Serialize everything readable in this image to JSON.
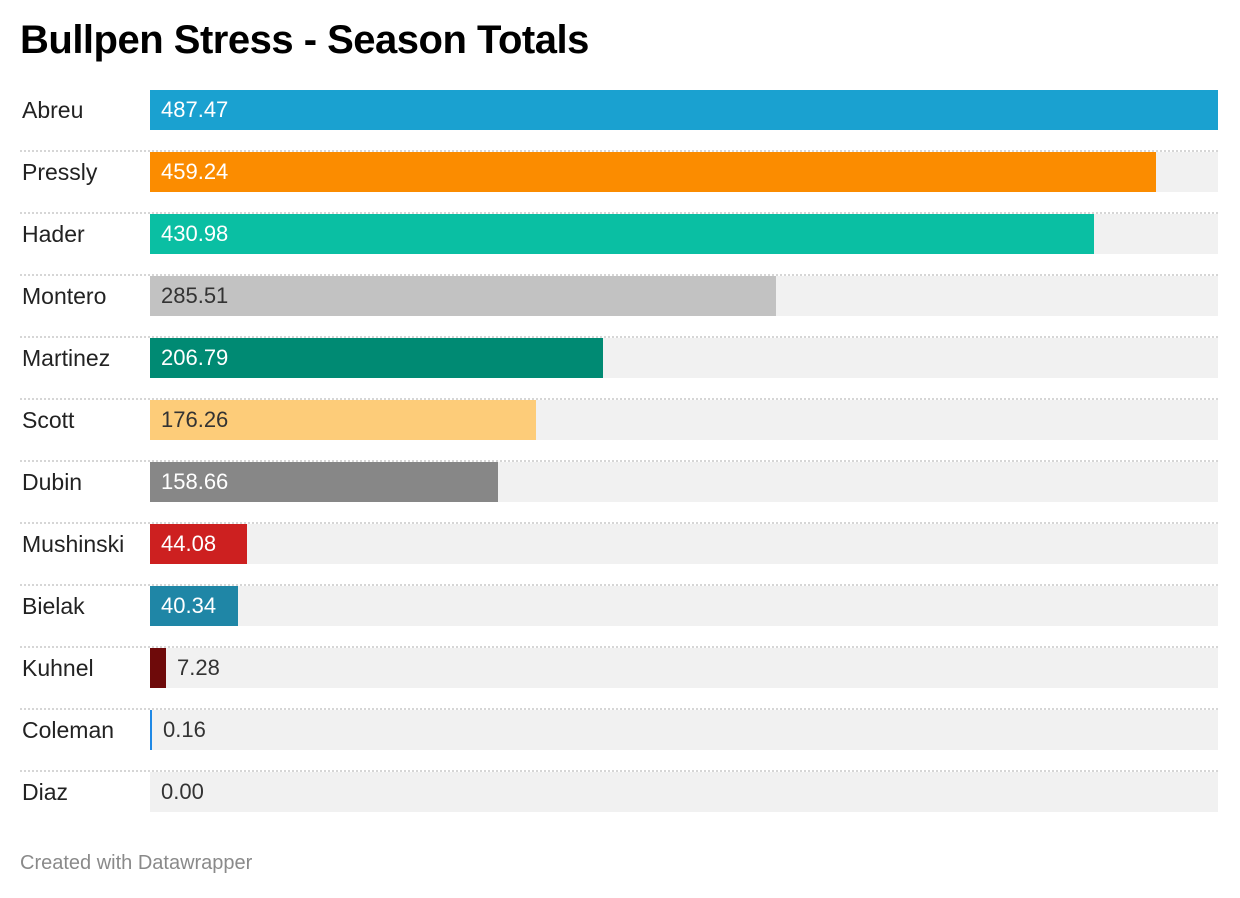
{
  "chart_data": {
    "type": "bar",
    "orientation": "horizontal",
    "title": "Bullpen Stress - Season Totals",
    "categories": [
      "Abreu",
      "Pressly",
      "Hader",
      "Montero",
      "Martinez",
      "Scott",
      "Dubin",
      "Mushinski",
      "Bielak",
      "Kuhnel",
      "Coleman",
      "Diaz"
    ],
    "values": [
      487.47,
      459.24,
      430.98,
      285.51,
      206.79,
      176.26,
      158.66,
      44.08,
      40.34,
      7.28,
      0.16,
      0.0
    ],
    "value_labels": [
      "487.47",
      "459.24",
      "430.98",
      "285.51",
      "206.79",
      "176.26",
      "158.66",
      "44.08",
      "40.34",
      "7.28",
      "0.16",
      "0.00"
    ],
    "colors": [
      "#1aa1d0",
      "#fb8c00",
      "#0abfa3",
      "#c2c2c2",
      "#008a73",
      "#fdcc79",
      "#878787",
      "#cd2020",
      "#1f86a6",
      "#6e0a0a",
      "#1e88e5",
      "#f1f1f1"
    ],
    "label_colors": [
      "#ffffff",
      "#ffffff",
      "#ffffff",
      "#333333",
      "#ffffff",
      "#333333",
      "#ffffff",
      "#ffffff",
      "#ffffff",
      "#333333",
      "#333333",
      "#333333"
    ],
    "xlim": [
      0,
      487.47
    ],
    "grid": false,
    "legend": "none"
  },
  "footer": "Created with Datawrapper"
}
